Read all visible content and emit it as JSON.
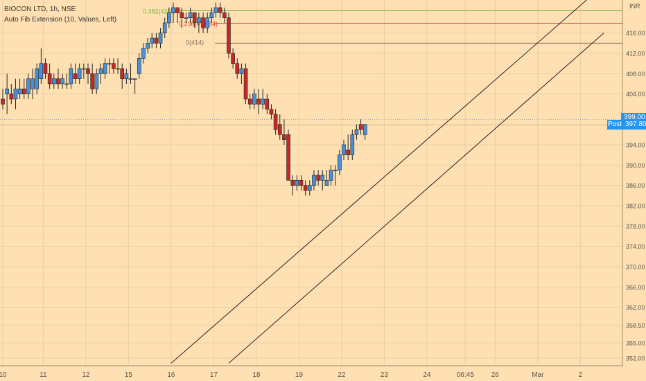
{
  "header": {
    "symbol": "BIOCON LTD, 1h, NSE",
    "indicator": "Auto Fib Extension (10, Values, Left)",
    "currency": "INR"
  },
  "badges": {
    "last_price": "399.00",
    "post_label": "Post",
    "post_price": "397.80"
  },
  "colors": {
    "background": "#ffe0b2",
    "up": "#4a90d9",
    "down": "#c62828",
    "wick": "#222222",
    "grid": "#e8cfa5",
    "fib_green": "#7cb342",
    "fib_red": "#e53935",
    "fib_brown": "#8d6e63",
    "badge": "#2196f3"
  },
  "chart_data": {
    "type": "candlestick",
    "symbol": "BIOCON LTD",
    "interval": "1h",
    "exchange": "NSE",
    "y_axis": {
      "unit": "INR",
      "ylim": [
        350.5,
        422.5
      ],
      "ticks": [
        352.0,
        355.0,
        358.5,
        362.0,
        366.0,
        370.0,
        374.0,
        378.0,
        382.0,
        386.0,
        390.0,
        394.0,
        398.0,
        404.0,
        408.0,
        412.0,
        416.0
      ],
      "tick_labels": [
        "352.00",
        "355.00",
        "358.50",
        "362.00",
        "366.00",
        "370.00",
        "374.00",
        "378.00",
        "382.00",
        "386.00",
        "390.00",
        "394.00",
        "398.00",
        "404.00",
        "408.00",
        "412.00",
        "416.00"
      ]
    },
    "x_axis": {
      "labels": [
        "10",
        "11",
        "12",
        "15",
        "16",
        "17",
        "18",
        "19",
        "22",
        "23",
        "24",
        "06:45",
        "26",
        "Mar",
        "2"
      ],
      "label_positions": [
        0,
        9.5,
        19.5,
        29.5,
        39.5,
        49.5,
        59.5,
        69.5,
        79.5,
        89.5,
        99.5,
        108.5,
        115.5,
        125.5,
        135.5
      ]
    },
    "grid": true,
    "candles": [
      [
        403,
        405,
        401,
        402
      ],
      [
        404,
        408,
        400,
        405
      ],
      [
        404,
        406,
        402,
        403
      ],
      [
        403,
        407,
        401,
        405
      ],
      [
        404,
        407,
        403,
        405
      ],
      [
        405,
        407,
        403,
        404
      ],
      [
        404,
        408,
        403,
        407
      ],
      [
        405,
        409,
        403,
        407
      ],
      [
        405,
        410,
        404,
        409
      ],
      [
        407,
        413,
        406,
        410
      ],
      [
        410,
        411,
        407,
        408
      ],
      [
        408,
        410,
        405,
        406
      ],
      [
        406,
        408,
        405,
        407
      ],
      [
        407,
        409,
        405,
        406
      ],
      [
        406,
        408,
        405,
        407
      ],
      [
        406,
        408,
        405,
        406
      ],
      [
        406,
        410,
        405,
        409
      ],
      [
        408,
        410,
        406,
        407
      ],
      [
        407,
        410,
        406,
        409
      ],
      [
        409,
        410,
        407,
        409
      ],
      [
        409,
        410,
        406,
        408
      ],
      [
        408,
        410,
        404,
        405
      ],
      [
        405,
        409,
        404,
        408
      ],
      [
        408,
        410,
        406,
        409
      ],
      [
        408,
        411,
        407,
        410
      ],
      [
        410,
        411,
        408,
        410
      ],
      [
        410,
        411,
        408,
        409
      ],
      [
        409,
        411,
        408,
        409
      ],
      [
        409,
        410,
        405,
        407
      ],
      [
        407,
        409,
        406,
        408
      ],
      [
        407,
        410,
        406,
        407
      ],
      [
        407,
        407,
        404,
        407
      ],
      [
        408,
        412,
        407,
        411
      ],
      [
        411,
        414,
        410,
        413
      ],
      [
        413,
        415,
        412,
        414
      ],
      [
        414,
        416,
        413,
        415
      ],
      [
        415,
        416,
        413,
        414
      ],
      [
        414,
        417,
        413,
        416
      ],
      [
        416,
        419,
        415,
        418
      ],
      [
        418,
        421,
        417,
        420
      ],
      [
        420,
        422,
        418,
        421
      ],
      [
        421,
        421,
        418,
        420
      ],
      [
        420,
        421,
        417,
        419
      ],
      [
        419,
        420,
        418,
        419
      ],
      [
        419,
        421,
        418,
        420
      ],
      [
        420,
        420,
        417,
        418
      ],
      [
        418,
        420,
        416,
        419
      ],
      [
        419,
        420,
        416,
        417
      ],
      [
        417,
        420,
        416,
        419
      ],
      [
        419,
        421,
        418,
        420
      ],
      [
        420,
        422,
        419,
        421
      ],
      [
        421,
        422,
        419,
        420
      ],
      [
        420,
        421,
        418,
        419
      ],
      [
        419,
        420,
        411,
        412
      ],
      [
        412,
        413,
        409,
        410
      ],
      [
        410,
        411,
        407,
        408
      ],
      [
        408,
        410,
        406,
        409
      ],
      [
        409,
        410,
        402,
        403
      ],
      [
        403,
        404,
        401,
        402
      ],
      [
        402,
        405,
        401,
        404
      ],
      [
        403,
        405,
        400,
        402
      ],
      [
        402,
        405,
        401,
        403
      ],
      [
        403,
        404,
        400,
        401
      ],
      [
        401,
        402,
        399,
        400
      ],
      [
        400,
        401,
        396,
        397
      ],
      [
        398,
        400,
        395,
        396
      ],
      [
        396,
        399,
        394,
        395
      ],
      [
        396,
        397,
        387,
        387
      ],
      [
        387,
        388,
        384,
        386
      ],
      [
        386,
        388,
        385,
        387
      ],
      [
        387,
        388,
        385,
        386
      ],
      [
        386,
        387,
        384,
        385
      ],
      [
        385,
        387,
        384,
        386
      ],
      [
        386,
        389,
        385,
        388
      ],
      [
        388,
        389,
        386,
        387
      ],
      [
        387,
        389,
        385,
        388
      ],
      [
        386,
        389,
        386,
        387
      ],
      [
        387,
        390,
        386,
        389
      ],
      [
        389,
        390,
        386,
        389
      ],
      [
        389,
        393,
        388,
        392
      ],
      [
        392,
        395,
        391,
        394
      ],
      [
        393,
        396,
        391,
        392
      ],
      [
        392,
        397,
        391,
        396
      ],
      [
        396,
        398,
        395,
        397
      ],
      [
        398,
        399,
        396,
        397
      ],
      [
        396,
        398,
        395,
        398
      ]
    ],
    "fib_levels": [
      {
        "label": "0.382(420.38)",
        "value": 420.38,
        "color": "#7cb342"
      },
      {
        "label": "0.236(417.94)",
        "value": 417.94,
        "color": "#e53935"
      },
      {
        "label": "0(414)",
        "value": 414.0,
        "color": "#8d6e63"
      }
    ],
    "channel_lines": [
      {
        "x1": 39.5,
        "y1": 351,
        "x2": 139,
        "y2": 424
      },
      {
        "x1": 53,
        "y1": 351,
        "x2": 141,
        "y2": 416
      }
    ],
    "price_lines": [
      {
        "value": 399.0,
        "label": "399.00"
      },
      {
        "value": 397.8,
        "label": "397.80"
      }
    ]
  }
}
